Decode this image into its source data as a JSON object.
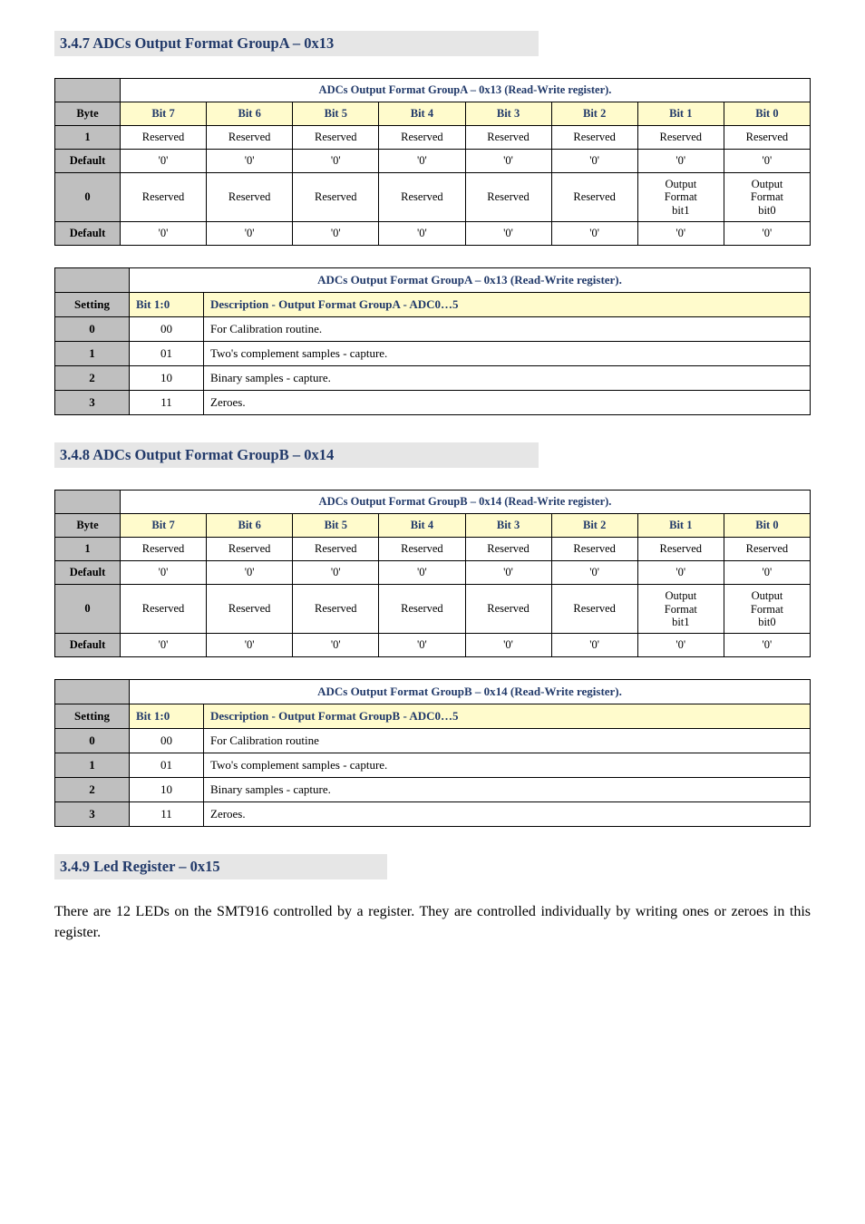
{
  "sections": {
    "s347": {
      "heading": "3.4.7   ADCs Output Format GroupA – 0x13"
    },
    "s348": {
      "heading": "3.4.8   ADCs Output Format GroupB – 0x14"
    },
    "s349": {
      "heading": "3.4.9   Led Register – 0x15"
    }
  },
  "register_table_common": {
    "byte_label": "Byte",
    "default_label": "Default",
    "bit_labels": [
      "Bit 7",
      "Bit 6",
      "Bit 5",
      "Bit 4",
      "Bit 3",
      "Bit 2",
      "Bit 1",
      "Bit 0"
    ]
  },
  "tableA": {
    "title": "ADCs Output Format GroupA – 0x13 (Read-Write register).",
    "rows": {
      "byte1_label": "1",
      "byte1": [
        "Reserved",
        "Reserved",
        "Reserved",
        "Reserved",
        "Reserved",
        "Reserved",
        "Reserved",
        "Reserved"
      ],
      "default1": [
        "'0'",
        "'0'",
        "'0'",
        "'0'",
        "'0'",
        "'0'",
        "'0'",
        "'0'"
      ],
      "byte0_label": "0",
      "byte0": [
        "Reserved",
        "Reserved",
        "Reserved",
        "Reserved",
        "Reserved",
        "Reserved",
        "Output\nFormat\nbit1",
        "Output\nFormat\nbit0"
      ],
      "default0": [
        "'0'",
        "'0'",
        "'0'",
        "'0'",
        "'0'",
        "'0'",
        "'0'",
        "'0'"
      ]
    }
  },
  "settingsA": {
    "title": "ADCs Output Format GroupA – 0x13 (Read-Write register).",
    "setting_label": "Setting",
    "bit_label": "Bit 1:0",
    "desc_label": "Description - Output Format GroupA - ADC0…5",
    "rows": [
      {
        "setting": "0",
        "bit": "00",
        "desc": "For Calibration routine."
      },
      {
        "setting": "1",
        "bit": "01",
        "desc": "Two's complement samples - capture."
      },
      {
        "setting": "2",
        "bit": "10",
        "desc": "Binary samples - capture."
      },
      {
        "setting": "3",
        "bit": "11",
        "desc": "Zeroes."
      }
    ]
  },
  "tableB": {
    "title": "ADCs Output Format GroupB – 0x14 (Read-Write register).",
    "rows": {
      "byte1_label": "1",
      "byte1": [
        "Reserved",
        "Reserved",
        "Reserved",
        "Reserved",
        "Reserved",
        "Reserved",
        "Reserved",
        "Reserved"
      ],
      "default1": [
        "'0'",
        "'0'",
        "'0'",
        "'0'",
        "'0'",
        "'0'",
        "'0'",
        "'0'"
      ],
      "byte0_label": "0",
      "byte0": [
        "Reserved",
        "Reserved",
        "Reserved",
        "Reserved",
        "Reserved",
        "Reserved",
        "Output\nFormat\nbit1",
        "Output\nFormat\nbit0"
      ],
      "default0": [
        "'0'",
        "'0'",
        "'0'",
        "'0'",
        "'0'",
        "'0'",
        "'0'",
        "'0'"
      ]
    }
  },
  "settingsB": {
    "title": "ADCs Output Format GroupB – 0x14 (Read-Write register).",
    "setting_label": "Setting",
    "bit_label": "Bit 1:0",
    "desc_label": "Description - Output Format GroupB - ADC0…5",
    "rows": [
      {
        "setting": "0",
        "bit": "00",
        "desc": "For Calibration routine"
      },
      {
        "setting": "1",
        "bit": "01",
        "desc": "Two's complement samples - capture."
      },
      {
        "setting": "2",
        "bit": "10",
        "desc": "Binary samples - capture."
      },
      {
        "setting": "3",
        "bit": "11",
        "desc": "Zeroes."
      }
    ]
  },
  "led_paragraph": "There are 12 LEDs on the SMT916 controlled by a register. They are controlled individually by writing ones or zeroes in this register.",
  "styling": {
    "heading_bg": "#e6e6e6",
    "heading_color": "#223a6a",
    "bit_header_bg": "#fffbcc",
    "rowhead_bg": "#bfbfbf",
    "border_color": "#000000",
    "font_body_pt": 14,
    "heading_width_pct": 64
  }
}
